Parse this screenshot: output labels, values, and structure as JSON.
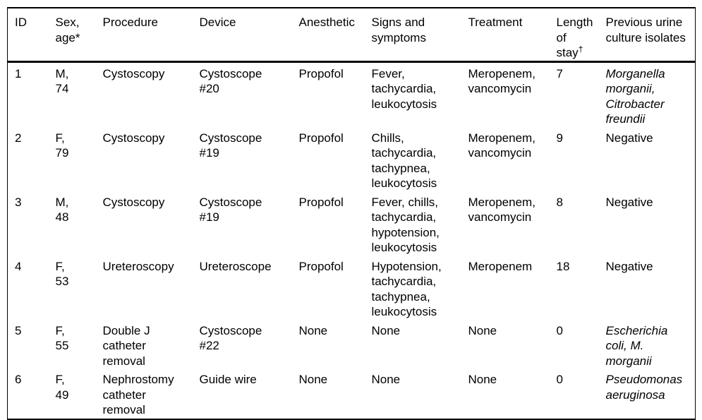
{
  "colors": {
    "text": "#000000",
    "border": "#000000",
    "background": "#ffffff"
  },
  "table": {
    "headers": [
      {
        "text": "ID"
      },
      {
        "text": "Sex,\nage*"
      },
      {
        "text": "Procedure"
      },
      {
        "text": "Device"
      },
      {
        "text": "Anesthetic"
      },
      {
        "text": "Signs and\nsymptoms"
      },
      {
        "text": "Treatment"
      },
      {
        "text": "Length\nof\nstay",
        "sup": "†"
      },
      {
        "text": "Previous urine\nculture isolates"
      }
    ],
    "rows": [
      {
        "cells": [
          {
            "text": "1"
          },
          {
            "text": "M,\n74"
          },
          {
            "text": "Cystoscopy"
          },
          {
            "text": "Cystoscope\n#20"
          },
          {
            "text": "Propofol"
          },
          {
            "text": "Fever,\ntachycardia,\nleukocytosis"
          },
          {
            "text": "Meropenem,\nvancomycin"
          },
          {
            "text": "7"
          },
          {
            "text": "Morganella\nmorganii,\nCitrobacter\nfreundii",
            "italic": true
          }
        ]
      },
      {
        "cells": [
          {
            "text": "2"
          },
          {
            "text": "F,\n79"
          },
          {
            "text": "Cystoscopy"
          },
          {
            "text": "Cystoscope\n#19"
          },
          {
            "text": "Propofol"
          },
          {
            "text": "Chills,\ntachycardia,\ntachypnea,\nleukocytosis"
          },
          {
            "text": "Meropenem,\nvancomycin"
          },
          {
            "text": "9"
          },
          {
            "text": "Negative"
          }
        ]
      },
      {
        "cells": [
          {
            "text": "3"
          },
          {
            "text": "M,\n48"
          },
          {
            "text": "Cystoscopy"
          },
          {
            "text": "Cystoscope\n#19"
          },
          {
            "text": "Propofol"
          },
          {
            "text": "Fever, chills,\ntachycardia,\nhypotension,\nleukocytosis"
          },
          {
            "text": "Meropenem,\nvancomycin"
          },
          {
            "text": "8"
          },
          {
            "text": "Negative"
          }
        ]
      },
      {
        "cells": [
          {
            "text": "4"
          },
          {
            "text": "F,\n53"
          },
          {
            "text": "Ureteroscopy"
          },
          {
            "text": "Ureteroscope"
          },
          {
            "text": "Propofol"
          },
          {
            "text": "Hypotension,\ntachycardia,\ntachypnea,\nleukocytosis"
          },
          {
            "text": "Meropenem"
          },
          {
            "text": "18"
          },
          {
            "text": "Negative"
          }
        ]
      },
      {
        "cells": [
          {
            "text": "5"
          },
          {
            "text": "F,\n55"
          },
          {
            "text": "Double J\ncatheter\nremoval"
          },
          {
            "text": "Cystoscope\n#22"
          },
          {
            "text": "None"
          },
          {
            "text": "None"
          },
          {
            "text": "None"
          },
          {
            "text": "0"
          },
          {
            "text": "Escherichia\ncoli, M.\nmorganii",
            "italic": true
          }
        ]
      },
      {
        "cells": [
          {
            "text": "6"
          },
          {
            "text": "F,\n49"
          },
          {
            "text": "Nephrostomy\ncatheter\nremoval"
          },
          {
            "text": "Guide wire"
          },
          {
            "text": "None"
          },
          {
            "text": "None"
          },
          {
            "text": "None"
          },
          {
            "text": "0"
          },
          {
            "text": "Pseudomonas\naeruginosa",
            "italic": true
          }
        ]
      }
    ]
  }
}
